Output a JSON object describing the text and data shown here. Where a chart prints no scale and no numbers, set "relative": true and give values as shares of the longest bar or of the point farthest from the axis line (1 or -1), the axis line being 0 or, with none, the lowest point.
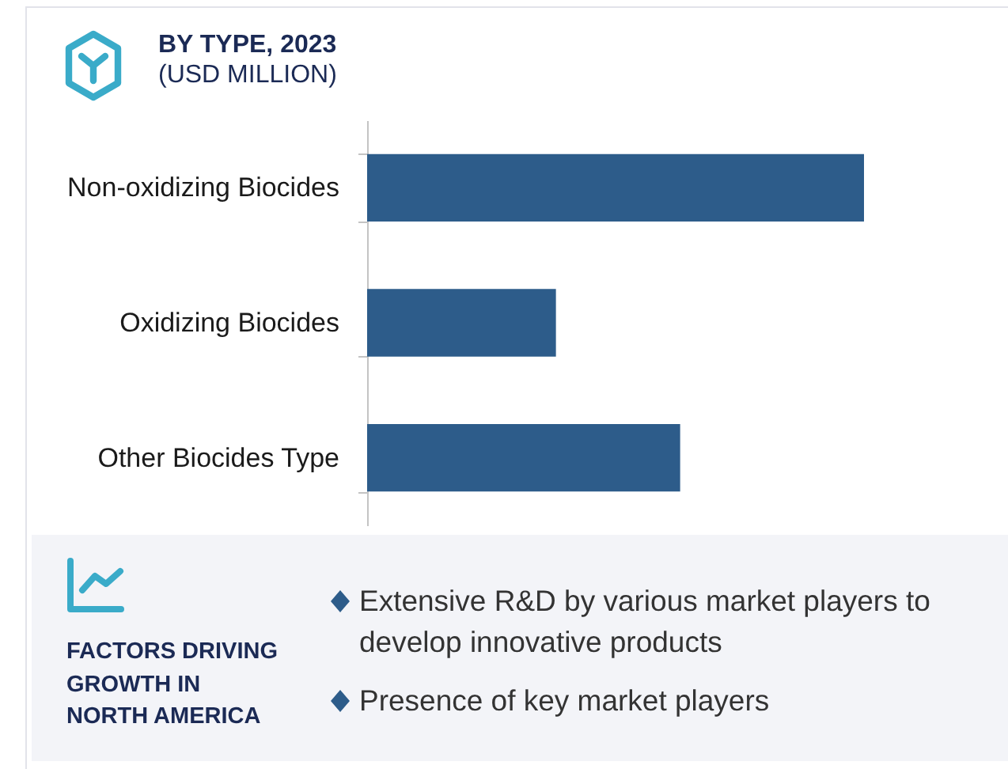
{
  "chart_data": [
    {
      "type": "bar",
      "title": "BY TYPE, 2023",
      "subtitle": "(USD MILLION)",
      "orientation": "horizontal",
      "relative": true,
      "color": "#2d5c8a",
      "categories": [
        "Non-oxidizing Biocides",
        "Oxidizing Biocides",
        "Other Biocides Type"
      ],
      "values": [
        1,
        0.38,
        0.63
      ]
    },
    {
      "type": "other",
      "title": "FACTORS DRIVING GROWTH IN NORTH AMERICA",
      "annotations": [
        "Extensive R&D by various market players to develop innovative products",
        "Presence of key market players"
      ]
    }
  ]
}
